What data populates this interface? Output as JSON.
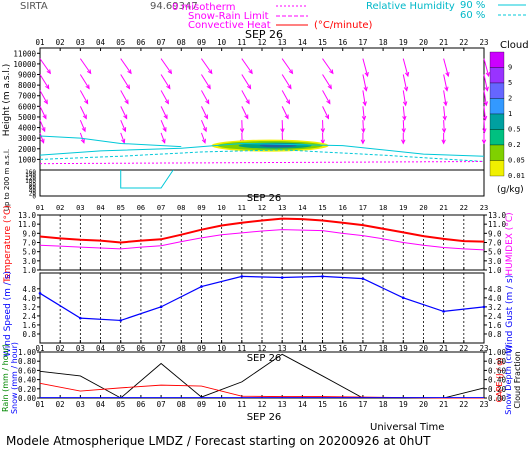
{
  "header": {
    "station": "SIRTA",
    "coords": "94.69347",
    "legend_isotherm": "0 misotherm",
    "legend_snow_rain": "Snow-Rain Limit",
    "legend_convective": "Convective Heat",
    "legend_convective_unit": "(°C/minute)",
    "legend_rh": "Relative Humidity",
    "legend_rh_90": "90 %",
    "legend_rh_60": "60 %"
  },
  "date_label": "SEP 26",
  "footer": "Modele Atmospherique LMDZ / Forecast starting on 20200926 at 0hUT",
  "universal_time": "Universal Time",
  "hours": [
    "01",
    "02",
    "03",
    "04",
    "05",
    "06",
    "07",
    "08",
    "09",
    "10",
    "11",
    "12",
    "13",
    "14",
    "15",
    "16",
    "17",
    "18",
    "19",
    "20",
    "21",
    "22",
    "23"
  ],
  "colors": {
    "magenta": "#ff00ff",
    "red": "#ff0000",
    "blue": "#0000ff",
    "cyan": "#00c8d8",
    "black": "#000000"
  },
  "chart_data": [
    {
      "type": "heatmap",
      "name": "cloud-panel",
      "ylabel": "Height (m a.s.l.)",
      "ylabel_low": "Up to 200 m a.s.l.",
      "yticks_upper": [
        1000,
        2000,
        3000,
        4000,
        5000,
        6000,
        7000,
        8000,
        9000,
        10000,
        11000
      ],
      "yticks_lower": [
        0,
        20,
        40,
        60,
        80,
        100,
        120,
        140,
        160
      ],
      "colorbar_title": "Clouds",
      "colorbar_unit": "(g/kg)",
      "colorbar_ticks": [
        "9",
        "5",
        "2",
        "1",
        "0.5",
        "0.2",
        "0.05",
        "0.01"
      ],
      "colorbar_colors": [
        "#cc00ff",
        "#9933ff",
        "#6666ff",
        "#3399ff",
        "#00a0a0",
        "#00c080",
        "#80d000",
        "#f0f000"
      ],
      "cloud_core": {
        "hour_start": 9.5,
        "hour_end": 15.3,
        "height_m": 2300
      }
    },
    {
      "type": "line",
      "name": "temperature-panel",
      "ylabel": "Temperature (°C)",
      "ylabel_right": "HUMIDEX (°C)",
      "yticks": [
        "1.0",
        "3.0",
        "5.0",
        "7.0",
        "9.0",
        "11.0",
        "13.0"
      ],
      "yticks_num": [
        1,
        3,
        5,
        7,
        9,
        11,
        13
      ],
      "ylim": [
        1,
        13
      ],
      "series": [
        {
          "name": "Temperature",
          "color": "#ff0000",
          "values": [
            8.3,
            7.9,
            7.6,
            7.4,
            7.0,
            7.4,
            7.7,
            8.7,
            9.8,
            10.7,
            11.3,
            11.8,
            12.2,
            12.1,
            11.8,
            11.3,
            10.8,
            10.0,
            9.2,
            8.4,
            7.8,
            7.3,
            7.2
          ]
        },
        {
          "name": "HUMIDEX",
          "color": "#ff00ff",
          "values": [
            6.4,
            6.2,
            6.0,
            5.8,
            5.6,
            6.0,
            6.3,
            7.2,
            8.0,
            8.7,
            9.1,
            9.5,
            9.8,
            9.7,
            9.6,
            9.0,
            8.5,
            7.8,
            7.0,
            6.4,
            5.9,
            5.6,
            5.4
          ]
        }
      ]
    },
    {
      "type": "line",
      "name": "wind-panel",
      "ylabel": "Wind Speed (m / s)",
      "ylabel_right": "Wind Gust (m / s)",
      "yticks": [
        "0.8",
        "1.6",
        "2.4",
        "3.2",
        "4.0",
        "4.8"
      ],
      "yticks_num": [
        0.8,
        1.6,
        2.4,
        3.2,
        4.0,
        4.8
      ],
      "ylim": [
        0,
        6.2
      ],
      "series": [
        {
          "name": "Wind Speed",
          "color": "#0000ff",
          "x": [
            1,
            3,
            5,
            7,
            9,
            11,
            13,
            15,
            17,
            19,
            21,
            23
          ],
          "values": [
            4.4,
            2.2,
            2.0,
            3.2,
            5.0,
            5.9,
            5.8,
            5.9,
            5.7,
            4.0,
            2.8,
            3.2
          ]
        }
      ]
    },
    {
      "type": "line",
      "name": "rain-panel",
      "ylabel": "Rain (mm / hour)",
      "ylabel2": "Snow (mm / hour)",
      "ylabel_right": "CAPE (J / g)",
      "ylabel_right2": "Snow Depth (cm)",
      "ylabel_right3": "Cloud Fraction",
      "yticks": [
        "0.00",
        "0.20",
        "0.40",
        "0.60",
        "0.80",
        "1.00"
      ],
      "yticks_num": [
        0,
        0.2,
        0.4,
        0.6,
        0.8,
        1.0
      ],
      "ylim": [
        0,
        1
      ],
      "series": [
        {
          "name": "Cloud Fraction",
          "color": "#000000",
          "x": [
            1,
            3,
            5,
            7,
            9,
            11,
            13,
            15,
            17,
            19,
            21,
            23
          ],
          "values": [
            0.58,
            0.48,
            0.0,
            0.75,
            0.02,
            0.35,
            0.95,
            0.48,
            0.0,
            0.0,
            0.0,
            0.22
          ]
        },
        {
          "name": "CAPE",
          "color": "#ff0000",
          "x": [
            1,
            3,
            5,
            7,
            9,
            11,
            13,
            15,
            17,
            19,
            21,
            23
          ],
          "values": [
            0.32,
            0.15,
            0.22,
            0.28,
            0.26,
            0.04,
            0.03,
            0.03,
            0.02,
            0.01,
            0.0,
            0.0
          ]
        },
        {
          "name": "Rain",
          "color": "#0000ff",
          "x": [
            1,
            23
          ],
          "values": [
            0.01,
            0.01
          ]
        }
      ]
    }
  ]
}
